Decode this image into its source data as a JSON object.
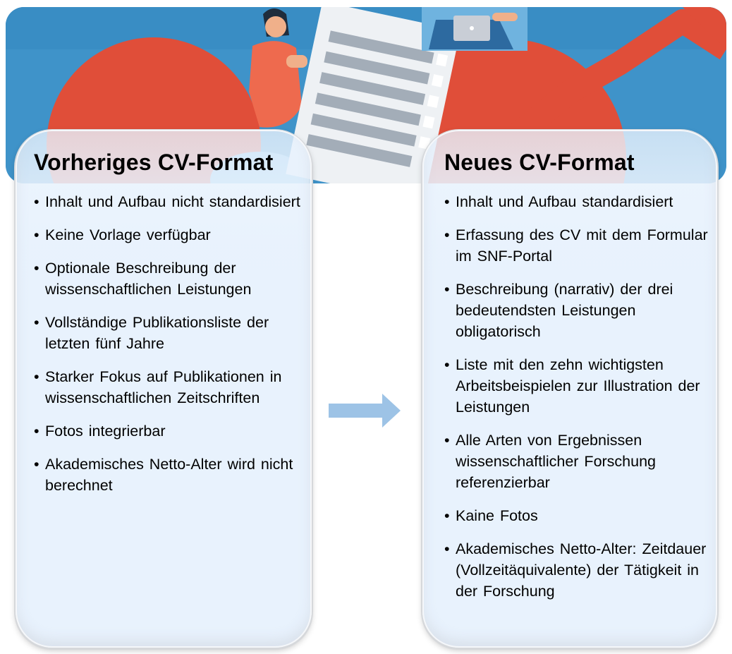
{
  "left_card": {
    "title": "Vorheriges CV-Format",
    "bullets": [
      "Inhalt und Aufbau nicht standardisiert",
      "Keine Vorlage verfügbar",
      "Optionale Beschreibung der wissenschaftlichen Leistungen",
      "Vollständige Publikationsliste der letzten fünf Jahre",
      "Starker Fokus auf Publikationen in wissenschaftlichen Zeitschriften",
      "Fotos integrierbar",
      "Akademisches Netto-Alter wird nicht berechnet"
    ]
  },
  "right_card": {
    "title": "Neues CV-Format",
    "bullets": [
      "Inhalt und Aufbau standardisiert",
      "Erfassung des CV mit dem Formular im SNF-Portal",
      "Beschreibung (narrativ) der drei bedeutendsten Leistungen obligatorisch",
      "Liste mit den zehn wichtigsten Arbeitsbeispielen zur Illustration der Leistungen",
      "Alle Arten von Ergebnissen wissenschaftlicher Forschung referenzierbar",
      "Kaine Fotos",
      "Akademisches Netto-Alter: Zeitdauer (Vollzeitäquivalente) der Tätigkeit in der Forschung"
    ]
  },
  "colors": {
    "banner_blue": "#4d9fd2",
    "banner_red": "#e04e39",
    "card_fill": "#e8f2fd",
    "arrow": "#9dc3e6"
  },
  "icons": {
    "arrow": "arrow-right-icon"
  }
}
